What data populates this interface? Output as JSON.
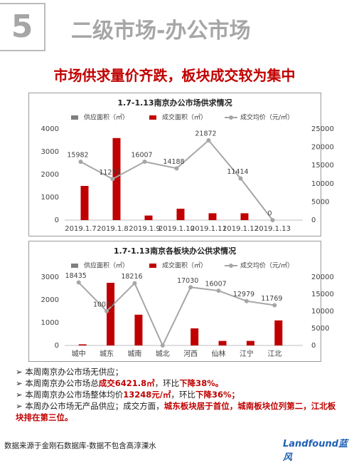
{
  "header": {
    "number": "5",
    "title": "二级市场-办公市场",
    "subtitle": "市场供求量价齐跌，板块成交较为集中"
  },
  "chart_data": [
    {
      "type": "bar-line",
      "title": "1.7-1.13南京办公市场供求情况",
      "categories": [
        "2019.1.7",
        "2019.1.8",
        "2019.1.9",
        "2019.1.10",
        "2019.1.11",
        "2019.1.12",
        "2019.1.13"
      ],
      "series": [
        {
          "name": "供应面积（㎡）",
          "color": "#7f7f7f",
          "values": [
            0,
            0,
            0,
            0,
            0,
            0,
            0
          ]
        },
        {
          "name": "成交面积（㎡）",
          "color": "#c00000",
          "values": [
            1500,
            3600,
            200,
            500,
            300,
            300,
            0
          ]
        },
        {
          "name": "成交均价（元/㎡）",
          "color": "#a6a6a6",
          "axis": "y2",
          "values": [
            15982,
            11272,
            16007,
            14188,
            21872,
            11414,
            0
          ]
        }
      ],
      "ylim": [
        0,
        4000
      ],
      "yticks": [
        0,
        1000,
        2000,
        3000,
        4000
      ],
      "y2lim": [
        0,
        25000
      ],
      "y2ticks": [
        0,
        5000,
        10000,
        15000,
        20000,
        25000
      ]
    },
    {
      "type": "bar-line",
      "title": "1.7-1.13南京各板块办公供求情况",
      "categories": [
        "城中",
        "城东",
        "城南",
        "城北",
        "河西",
        "仙林",
        "江宁",
        "江北"
      ],
      "series": [
        {
          "name": "供应面积（㎡）",
          "color": "#7f7f7f",
          "values": [
            0,
            0,
            0,
            0,
            0,
            0,
            0,
            0
          ]
        },
        {
          "name": "成交面积（㎡）",
          "color": "#c00000",
          "values": [
            50,
            2750,
            1350,
            0,
            750,
            200,
            200,
            1100
          ]
        },
        {
          "name": "成交均价（元/㎡）",
          "color": "#a6a6a6",
          "axis": "y2",
          "values": [
            18435,
            10032,
            18216,
            0,
            17030,
            16007,
            12979,
            11769
          ],
          "value_labels": [
            "18435",
            "10032",
            "18216",
            null,
            "17030",
            "16007",
            "12979",
            "11769"
          ]
        }
      ],
      "ylim": [
        0,
        3000
      ],
      "yticks": [
        0,
        1000,
        2000,
        3000
      ],
      "y2lim": [
        0,
        20000
      ],
      "y2ticks": [
        0,
        5000,
        10000,
        15000,
        20000
      ]
    }
  ],
  "bullets": [
    [
      "本周南京办公市场无供应；"
    ],
    [
      "本周南京办公市场总",
      "成交6421.8㎡",
      "，环比",
      "下降38%。"
    ],
    [
      "本周南京办公市场整体均价",
      "13248元/㎡",
      "，环比",
      "下降36%；"
    ],
    [
      "本周办公市场无产品供应；成交方面，",
      "城东板块居于首位，城南板块位列第二，江北板块排在第三位。"
    ]
  ],
  "footer": {
    "source": "数据来源于金刚石数据库-数据不包含高淳溧水",
    "logo": "Landfound蓝风"
  }
}
